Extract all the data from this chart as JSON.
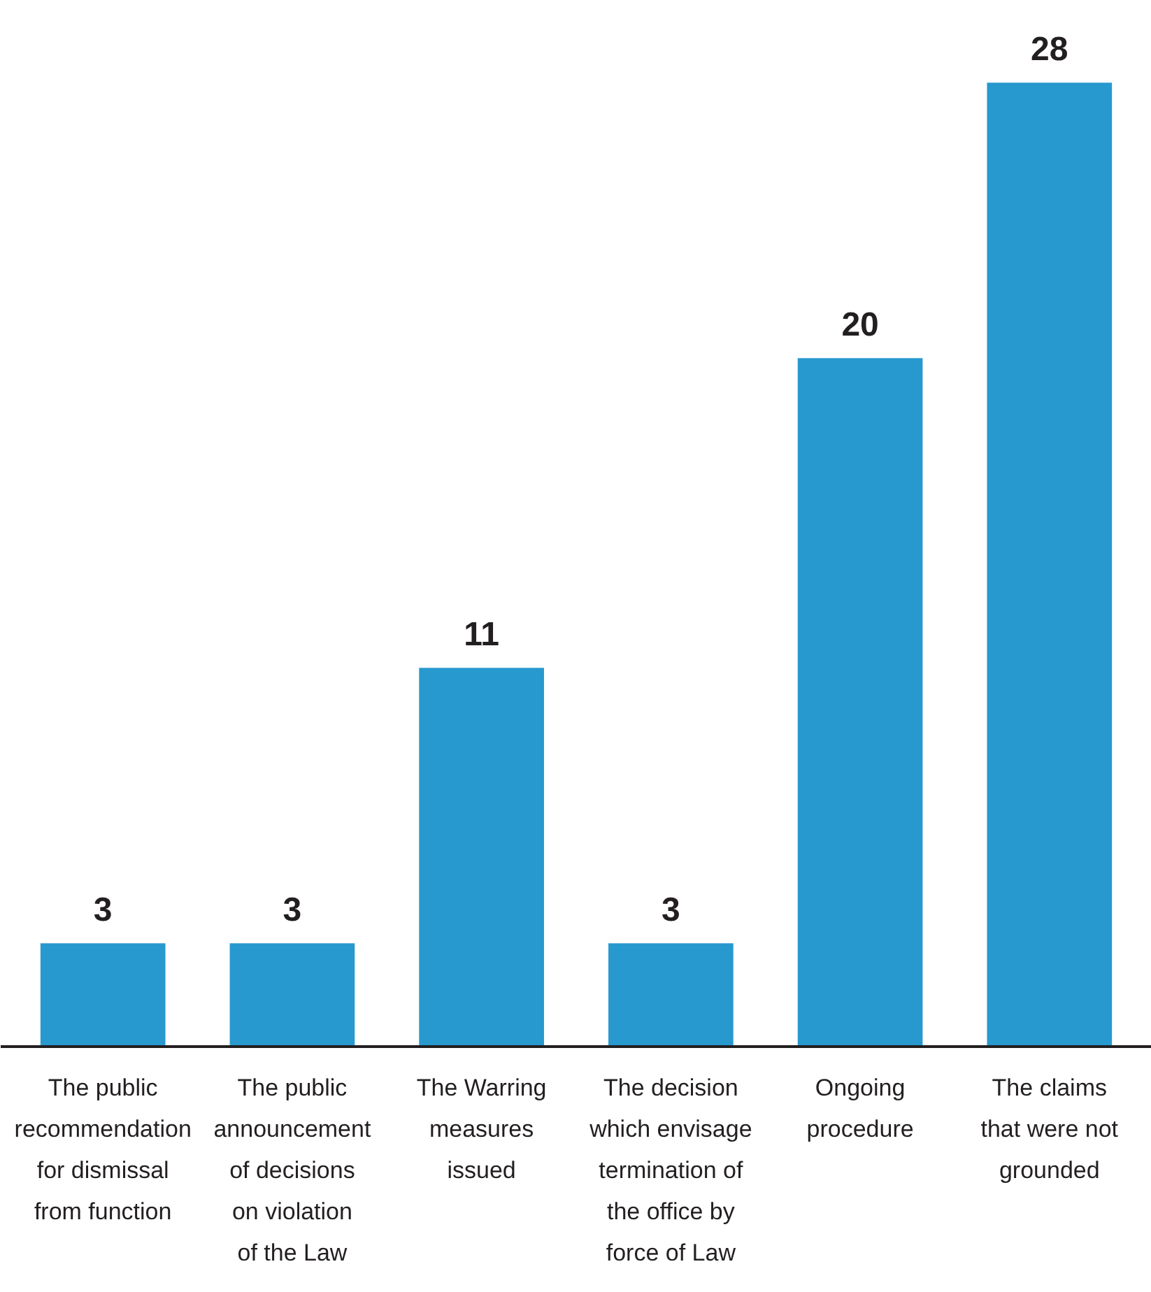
{
  "chart_data": {
    "type": "bar",
    "categories": [
      "The public recommendation for dismissal from function",
      "The public announcement of decisions on violation of the Law",
      "The Warring measures issued",
      "The decision which envisage termination of the office by force of Law",
      "Ongoing procedure",
      "The claims that were not grounded"
    ],
    "values": [
      3,
      3,
      11,
      3,
      20,
      28
    ],
    "color": "#2799cf",
    "data_labels": true,
    "tick_labels": "x"
  }
}
